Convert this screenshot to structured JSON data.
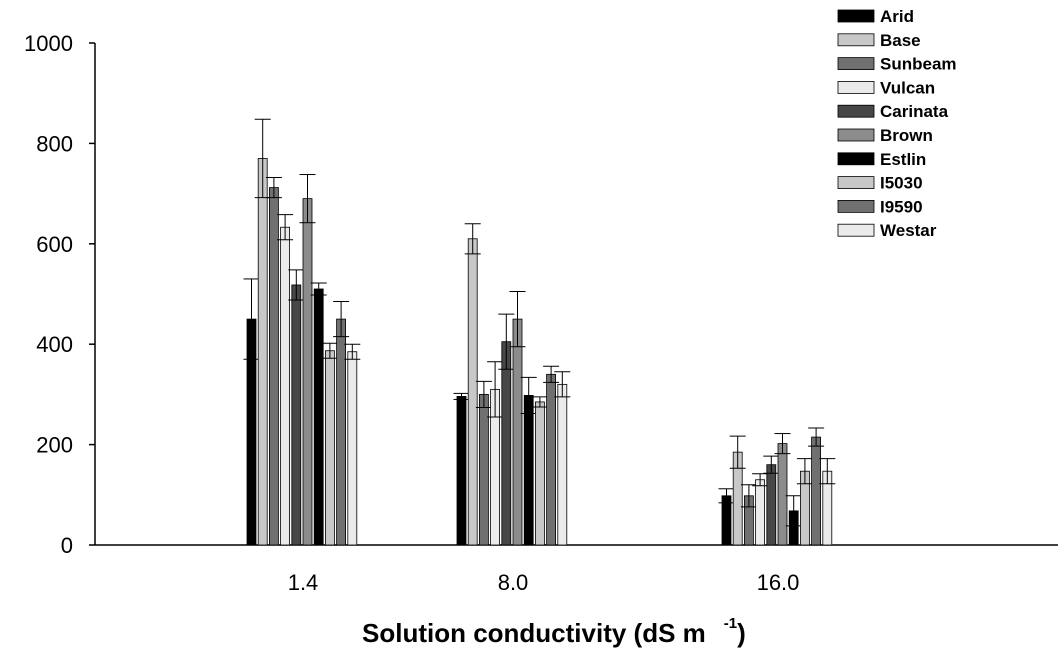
{
  "chart_data": {
    "type": "bar",
    "title": "",
    "xlabel": "Solution conductivity (dS m",
    "xlabel_superscript": "-1",
    "xlabel_close": ")",
    "ylabel": "",
    "ylim": [
      0,
      1000
    ],
    "yticks": [
      "0",
      "200",
      "400",
      "600",
      "800",
      "1000"
    ],
    "categories": [
      "1.4",
      "8.0",
      "16.0"
    ],
    "legend_position": "top-right",
    "error_bars": true,
    "series": [
      {
        "name": "Arid",
        "color": "#000000",
        "values": [
          450,
          296,
          98
        ],
        "errors": [
          80,
          6,
          14
        ]
      },
      {
        "name": "Base",
        "color": "#c8c8c8",
        "values": [
          770,
          610,
          185
        ],
        "errors": [
          78,
          30,
          32
        ]
      },
      {
        "name": "Sunbeam",
        "color": "#707070",
        "values": [
          712,
          300,
          98
        ],
        "errors": [
          20,
          26,
          22
        ]
      },
      {
        "name": "Vulcan",
        "color": "#ebebeb",
        "values": [
          633,
          310,
          130
        ],
        "errors": [
          25,
          55,
          12
        ]
      },
      {
        "name": "Carinata",
        "color": "#474747",
        "values": [
          518,
          405,
          160
        ],
        "errors": [
          30,
          55,
          17
        ]
      },
      {
        "name": "Brown",
        "color": "#8c8c8c",
        "values": [
          690,
          450,
          202
        ],
        "errors": [
          48,
          55,
          20
        ]
      },
      {
        "name": "Estlin",
        "color": "#000000",
        "values": [
          510,
          298,
          68
        ],
        "errors": [
          12,
          36,
          30
        ]
      },
      {
        "name": "I5030",
        "color": "#c8c8c8",
        "values": [
          387,
          285,
          147
        ],
        "errors": [
          15,
          10,
          25
        ]
      },
      {
        "name": "I9590",
        "color": "#707070",
        "values": [
          450,
          340,
          215
        ],
        "errors": [
          35,
          16,
          18
        ]
      },
      {
        "name": "Westar",
        "color": "#ebebeb",
        "values": [
          385,
          320,
          147
        ],
        "errors": [
          15,
          25,
          25
        ]
      }
    ]
  }
}
